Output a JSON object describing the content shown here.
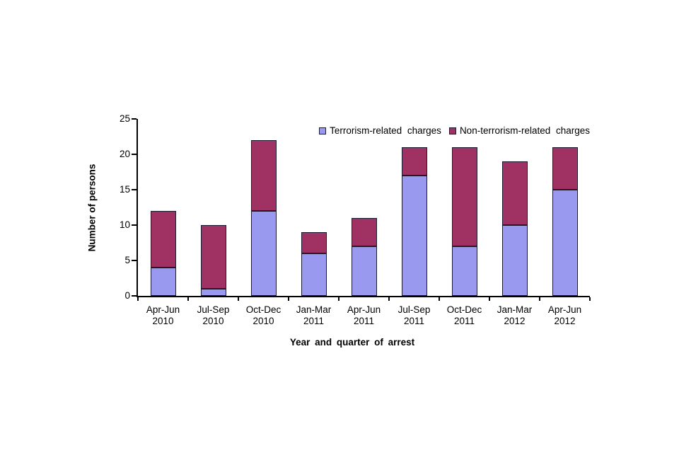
{
  "chart_data": {
    "type": "bar",
    "stacked": true,
    "title": "",
    "xlabel": "Year and quarter of arrest",
    "ylabel": "Number of persons",
    "ylim": [
      0,
      25
    ],
    "yticks": [
      0,
      5,
      10,
      15,
      20,
      25
    ],
    "grid": false,
    "legend_position": "top-right-inside",
    "categories": [
      "Apr-Jun 2010",
      "Jul-Sep 2010",
      "Oct-Dec 2010",
      "Jan-Mar 2011",
      "Apr-Jun 2011",
      "Jul-Sep 2011",
      "Oct-Dec 2011",
      "Jan-Mar 2012",
      "Apr-Jun 2012"
    ],
    "category_lines": [
      [
        "Apr-Jun",
        "2010"
      ],
      [
        "Jul-Sep",
        "2010"
      ],
      [
        "Oct-Dec",
        "2010"
      ],
      [
        "Jan-Mar",
        "2011"
      ],
      [
        "Apr-Jun",
        "2011"
      ],
      [
        "Jul-Sep",
        "2011"
      ],
      [
        "Oct-Dec",
        "2011"
      ],
      [
        "Jan-Mar",
        "2012"
      ],
      [
        "Apr-Jun",
        "2012"
      ]
    ],
    "series": [
      {
        "name": "Terrorism-related charges",
        "color": "#9999EF",
        "values": [
          4,
          1,
          12,
          6,
          7,
          17,
          7,
          10,
          15
        ]
      },
      {
        "name": "Non-terrorism-related charges",
        "color": "#A03263",
        "values": [
          8,
          9,
          10,
          3,
          4,
          4,
          14,
          9,
          6
        ]
      }
    ],
    "totals": [
      12,
      10,
      22,
      9,
      11,
      21,
      21,
      19,
      21
    ],
    "bar_border_color": "#1a1a33",
    "axis_color": "#000000",
    "background_color": "#ffffff"
  }
}
